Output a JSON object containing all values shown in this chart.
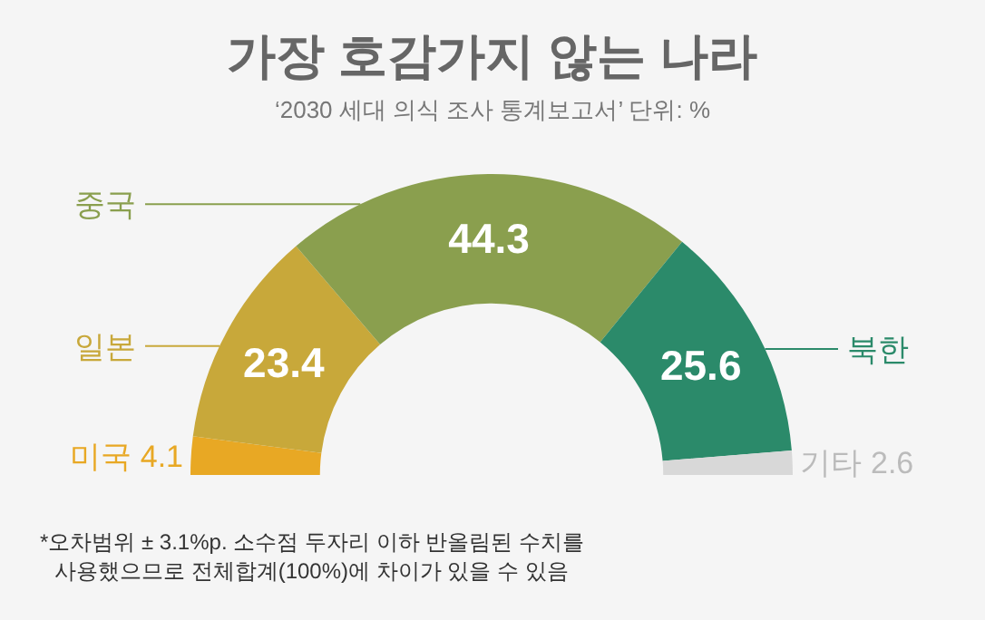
{
  "chart_data": {
    "type": "donut",
    "title": "가장 호감가지 않는 나라",
    "subtitle": "‘2030 세대 의식 조사 통계보고서’ 단위: %",
    "categories": [
      "미국",
      "일본",
      "중국",
      "북한",
      "기타"
    ],
    "values": [
      4.1,
      23.4,
      44.3,
      25.6,
      2.6
    ],
    "colors": [
      "#e8a824",
      "#c8a83a",
      "#8a9f4e",
      "#2b8a6a",
      "#d8d8d8"
    ],
    "data_labels": true,
    "annotations": [
      "*오차범위 ± 3.1%p. 소수점 두자리 이하 반올림된 수치를 사용했으므로 전체합계(100%)에 차이가 있을 수 있음"
    ]
  }
}
